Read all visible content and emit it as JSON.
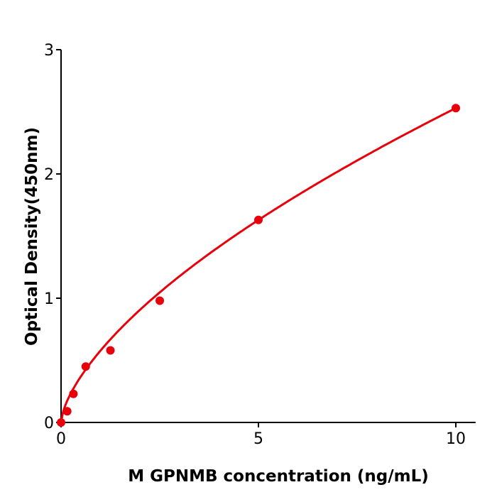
{
  "chart_data": {
    "type": "scatter",
    "xlabel": "M  GPNMB concentration (ng/mL)",
    "ylabel": "Optical Density(450nm)",
    "xlim": [
      0,
      10.5
    ],
    "ylim": [
      0,
      3
    ],
    "xticks": [
      0,
      5,
      10
    ],
    "yticks": [
      0,
      1,
      2,
      3
    ],
    "grid": false,
    "color": "#e8000b",
    "series": [
      {
        "x": [
          0,
          0.156,
          0.313,
          0.625,
          1.25,
          2.5,
          5,
          10
        ],
        "y": [
          0.0,
          0.09,
          0.23,
          0.45,
          0.58,
          0.98,
          1.63,
          2.53
        ]
      }
    ],
    "fit_curve": "smooth fitted curve through points"
  }
}
